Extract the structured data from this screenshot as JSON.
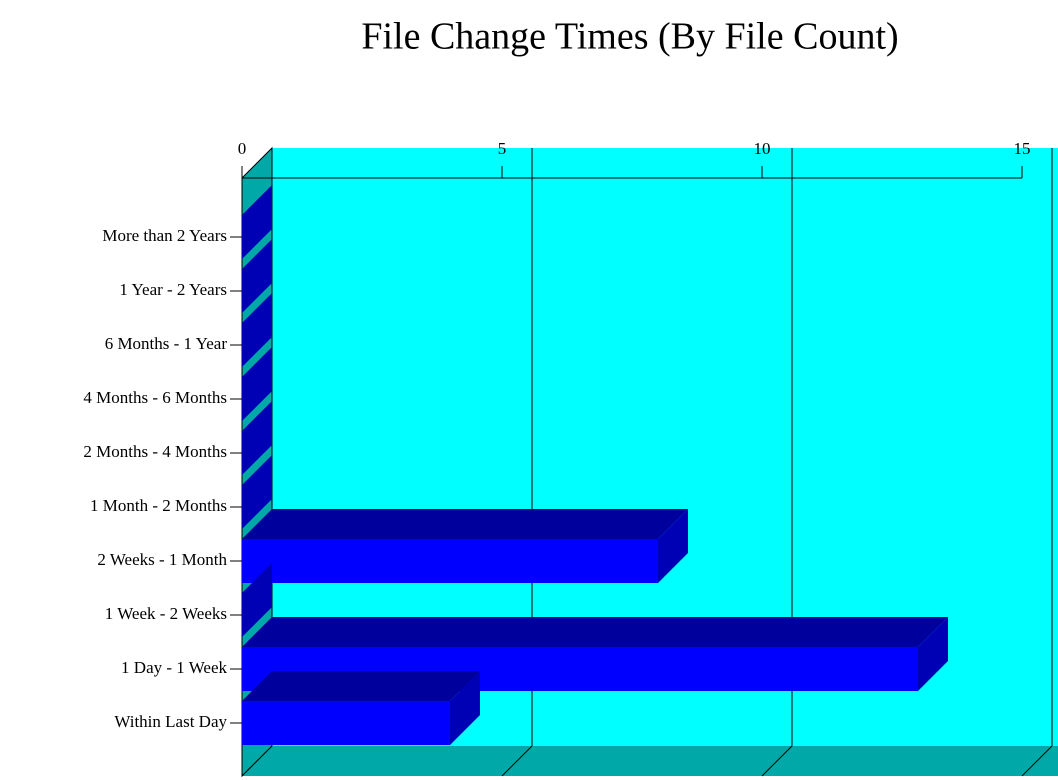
{
  "chart_data": {
    "type": "bar3d_horizontal",
    "title": "File Change Times (By File Count)",
    "categories": [
      "More than 2 Years",
      "1 Year - 2 Years",
      "6 Months - 1 Year",
      "4 Months - 6 Months",
      "2 Months - 4 Months",
      "1 Month - 2 Months",
      "2 Weeks - 1 Month",
      "1 Week - 2 Weeks",
      "1 Day - 1 Week",
      "Within Last Day"
    ],
    "values": [
      0,
      0,
      0,
      0,
      0,
      0,
      8,
      0,
      13,
      4
    ],
    "color": "#0000ff",
    "top_color": "#00009c",
    "side_color": "#0000b4",
    "xlim": [
      0,
      15
    ],
    "xticks": [
      0,
      5,
      10,
      15
    ],
    "grid": true
  }
}
